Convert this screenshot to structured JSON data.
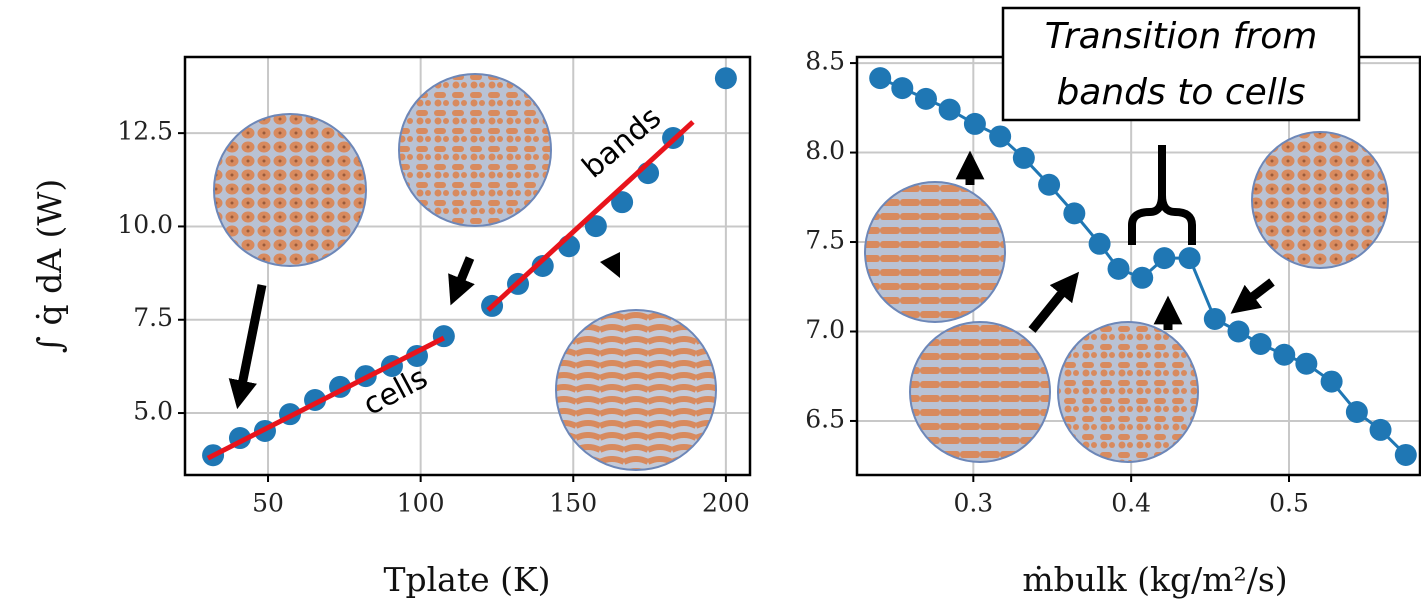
{
  "chart_data": [
    {
      "type": "scatter",
      "xlabel": "Tplate (K)",
      "ylabel": "∫ q̇ dA (W)",
      "xlim": [
        22.8,
        207.9
      ],
      "ylim": [
        3.34,
        14.54
      ],
      "xticks": [
        50,
        100,
        150,
        200
      ],
      "yticks": [
        {
          "value": 5,
          "label": "5.0"
        },
        {
          "value": 7.5,
          "label": "7.5"
        },
        {
          "value": 10,
          "label": "10.0"
        },
        {
          "value": 12.5,
          "label": "12.5"
        }
      ],
      "grid": true,
      "series": [
        {
          "color": "#1f77b4",
          "marker": true,
          "line": false,
          "x": [
            32,
            40.8,
            49,
            57.2,
            65.4,
            73.6,
            82,
            90.6,
            98.8,
            107.6,
            123.4,
            131.9,
            140,
            148.6,
            157.4,
            166,
            174.5,
            182.7,
            200
          ],
          "values": [
            3.87,
            4.33,
            4.52,
            4.97,
            5.35,
            5.7,
            5.99,
            6.26,
            6.53,
            7.06,
            7.87,
            8.46,
            8.94,
            9.47,
            10.01,
            10.65,
            11.43,
            12.37,
            13.97
          ]
        },
        {
          "color": "#e8141c",
          "marker": false,
          "line": true,
          "x": [
            30.3,
            107.6
          ],
          "values": [
            3.79,
            7.01
          ]
        },
        {
          "color": "#e8141c",
          "marker": false,
          "line": true,
          "x": [
            122.1,
            189.2
          ],
          "values": [
            7.76,
            12.8
          ]
        }
      ],
      "annotations": [
        "cells",
        "bands"
      ]
    },
    {
      "type": "line",
      "xlabel": "ṁbulk (kg/m²/s)",
      "xlim": [
        0.2263,
        0.583
      ],
      "ylim": [
        6.198,
        8.534
      ],
      "xticks": [
        0.3,
        0.4,
        0.5
      ],
      "yticks": [
        6.5,
        {
          "value": 7,
          "label": "7.0"
        },
        7.5,
        {
          "value": 8,
          "label": "8.0"
        },
        8.5
      ],
      "grid": true,
      "series": [
        {
          "color": "#1f77b4",
          "marker": true,
          "line": true,
          "x": [
            0.241,
            0.255,
            0.27,
            0.285,
            0.301,
            0.317,
            0.332,
            0.348,
            0.364,
            0.38,
            0.392,
            0.407,
            0.421,
            0.437,
            0.453,
            0.468,
            0.482,
            0.497,
            0.511,
            0.527,
            0.543,
            0.558,
            0.574
          ],
          "values": [
            8.416,
            8.36,
            8.3,
            8.24,
            8.16,
            8.09,
            7.97,
            7.82,
            7.66,
            7.49,
            7.35,
            7.3,
            7.41,
            7.41,
            7.07,
            7.0,
            6.93,
            6.87,
            6.82,
            6.72,
            6.55,
            6.45,
            6.31
          ]
        }
      ],
      "annotations": [
        "Transition from",
        "bands to cells"
      ]
    }
  ]
}
